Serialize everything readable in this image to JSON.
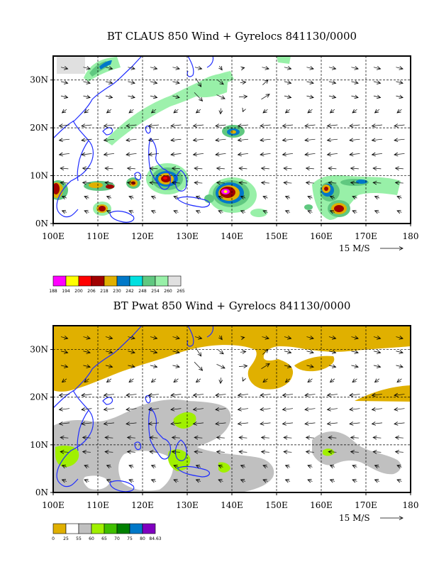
{
  "chart_data": [
    {
      "type": "heatmap",
      "title": "BT CLAUS 850 Wind + Gyrelocs 841130/0000",
      "xlim": [
        100,
        180
      ],
      "ylim": [
        0,
        35
      ],
      "x_ticks": [
        "100E",
        "110E",
        "120E",
        "130E",
        "140E",
        "150E",
        "160E",
        "170E",
        "180"
      ],
      "y_ticks": [
        "0N",
        "10N",
        "20N",
        "30N"
      ],
      "grid": true,
      "vector_reference": "15 M/S",
      "colorbar": {
        "labels": [
          "188",
          "194",
          "200",
          "206",
          "218",
          "230",
          "242",
          "248",
          "254",
          "260",
          "265"
        ],
        "colors": [
          "#ff00ff",
          "#ffff00",
          "#ff0000",
          "#a00000",
          "#e0b000",
          "#0078c8",
          "#00e0e0",
          "#60c880",
          "#98f0a8",
          "#e0e0e0"
        ]
      },
      "features": [
        {
          "name": "cold cloud cluster",
          "lon": 127,
          "lat": 10,
          "value": 206
        },
        {
          "name": "cold cloud cluster",
          "lon": 141,
          "lat": 7,
          "value": 194
        },
        {
          "name": "cold cloud cluster",
          "lon": 165,
          "lat": 5,
          "value": 206
        },
        {
          "name": "cold cloud cluster",
          "lon": 100,
          "lat": 8,
          "value": 206
        },
        {
          "name": "cold cloud cluster",
          "lon": 111,
          "lat": 3,
          "value": 206
        },
        {
          "name": "cloud band",
          "lon": 112,
          "lat": 32,
          "value": 242
        },
        {
          "name": "cloud patch",
          "lon": 139,
          "lat": 20,
          "value": 230
        }
      ]
    },
    {
      "type": "heatmap",
      "title": "BT Pwat 850 Wind + Gyrelocs 841130/0000",
      "xlim": [
        100,
        180
      ],
      "ylim": [
        0,
        35
      ],
      "x_ticks": [
        "100E",
        "110E",
        "120E",
        "130E",
        "140E",
        "150E",
        "160E",
        "170E",
        "180"
      ],
      "y_ticks": [
        "0N",
        "10N",
        "20N",
        "30N"
      ],
      "grid": true,
      "vector_reference": "15 M/S",
      "colorbar": {
        "labels": [
          "0",
          "25",
          "55",
          "60",
          "65",
          "70",
          "75",
          "80",
          "84.63"
        ],
        "colors": [
          "#e0b000",
          "#ffffff",
          "#c0c0c0",
          "#a0f000",
          "#40c000",
          "#008000",
          "#0078c8",
          "#8000c0"
        ]
      },
      "features": [
        {
          "name": "dry region north",
          "lat_range": [
            25,
            35
          ],
          "value": "0-25"
        },
        {
          "name": "moist region south",
          "lat_range": [
            0,
            15
          ],
          "value": "55-60"
        },
        {
          "name": "moist patch",
          "lon": 124,
          "lat": 17,
          "value": "60-65"
        },
        {
          "name": "moist patch",
          "lon": 103,
          "lat": 8,
          "value": "60-65"
        },
        {
          "name": "moist patch",
          "lon": 128,
          "lat": 7,
          "value": "60-65"
        }
      ]
    }
  ]
}
